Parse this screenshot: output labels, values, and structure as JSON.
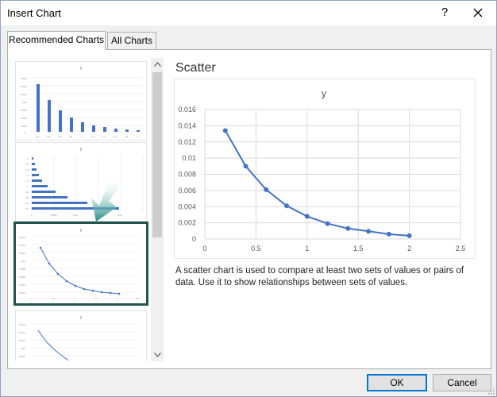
{
  "dialog": {
    "title": "Insert Chart",
    "help_label": "?",
    "close_icon": "close-icon"
  },
  "tabs": [
    {
      "label": "Recommended Charts",
      "active": true
    },
    {
      "label": "All Charts",
      "active": false
    }
  ],
  "thumbnails": [
    {
      "name": "clustered-column",
      "title": "y"
    },
    {
      "name": "clustered-bar",
      "title": "y"
    },
    {
      "name": "scatter",
      "title": "y",
      "selected": true
    },
    {
      "name": "scatter-lines",
      "title": "y"
    }
  ],
  "preview": {
    "chart_name": "Scatter",
    "description": "A scatter chart is used to compare at least two sets of values or pairs of data. Use it to show relationships between sets of values."
  },
  "chart_data": {
    "type": "scatter",
    "title": "y",
    "x": [
      0.2,
      0.4,
      0.6,
      0.8,
      1.0,
      1.2,
      1.4,
      1.6,
      1.8,
      2.0
    ],
    "y": [
      0.0134,
      0.009,
      0.0061,
      0.0041,
      0.0028,
      0.0019,
      0.0013,
      0.00095,
      0.0006,
      0.0004
    ],
    "xlim": [
      0,
      2.5
    ],
    "ylim": [
      0,
      0.016
    ],
    "x_ticks": [
      "0",
      "0.5",
      "1",
      "1.5",
      "2",
      "2.5"
    ],
    "y_ticks": [
      "0",
      "0.002",
      "0.004",
      "0.006",
      "0.008",
      "0.01",
      "0.012",
      "0.014",
      "0.016"
    ],
    "grid": true,
    "line_color": "#4472c4"
  },
  "buttons": {
    "ok": "OK",
    "cancel": "Cancel"
  }
}
